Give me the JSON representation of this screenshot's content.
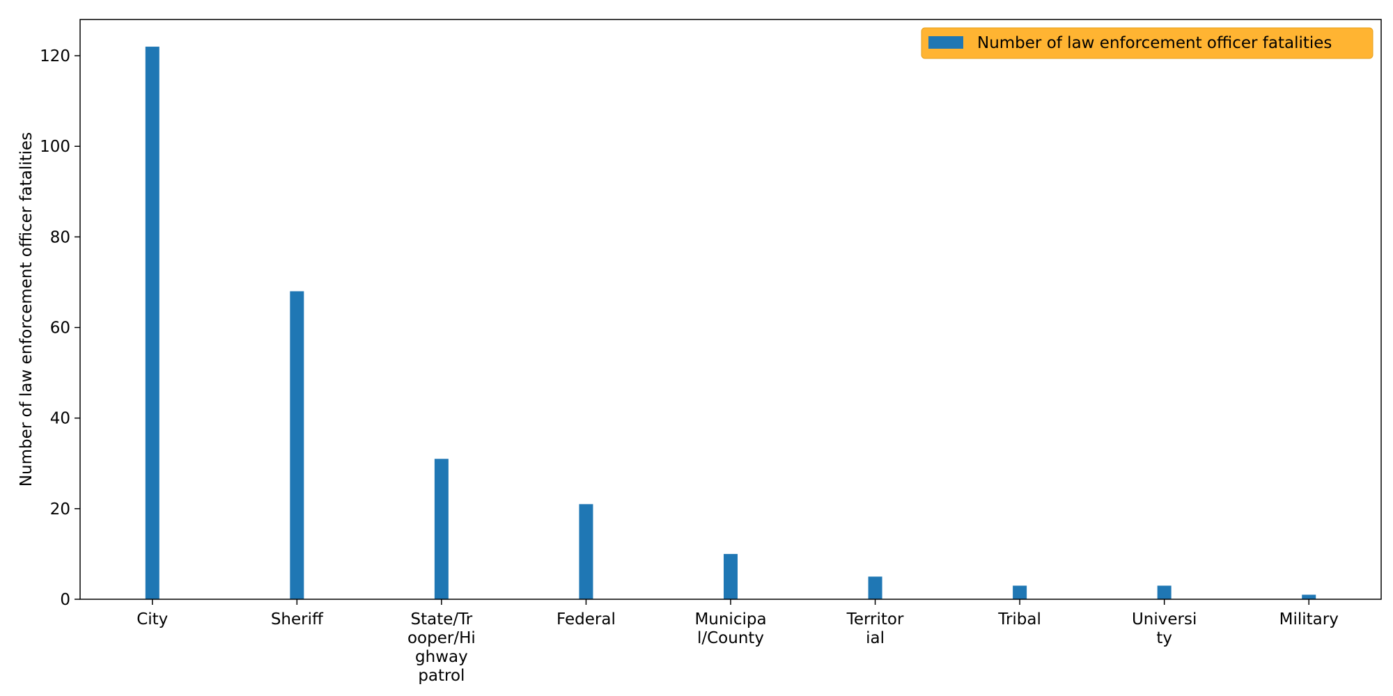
{
  "chart_data": {
    "type": "bar",
    "categories": [
      "City",
      "Sheriff",
      "State/Trooper/Highway patrol",
      "Federal",
      "Municipal/County",
      "Territorial",
      "Tribal",
      "University",
      "Military"
    ],
    "category_tick_lines": [
      [
        "City"
      ],
      [
        "Sheriff"
      ],
      [
        "State/Tr",
        "ooper/Hi",
        "ghway",
        "patrol"
      ],
      [
        "Federal"
      ],
      [
        "Municipa",
        "l/County"
      ],
      [
        "Territor",
        "ial"
      ],
      [
        "Tribal"
      ],
      [
        "Universi",
        "ty"
      ],
      [
        "Military"
      ]
    ],
    "series": [
      {
        "name": "Number of law enforcement officer fatalities",
        "values": [
          122,
          68,
          31,
          21,
          10,
          5,
          3,
          3,
          1
        ]
      }
    ],
    "ylabel": "Number of law enforcement officer fatalities",
    "ylim": [
      0,
      128
    ],
    "yticks": [
      0,
      20,
      40,
      60,
      80,
      100,
      120
    ],
    "grid": false,
    "legend": {
      "placement": "top-right",
      "background": "#ffb432"
    },
    "bar_color": "#1f77b4"
  }
}
